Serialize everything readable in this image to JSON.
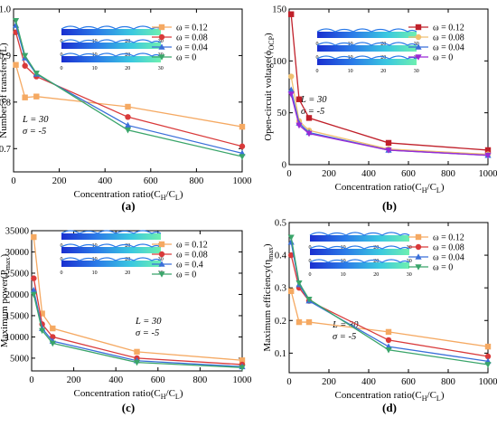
{
  "chart_data": [
    {
      "panel": "(a)",
      "type": "line",
      "ylabel": "Number of transfers (L)",
      "xlabel": "Concentration ratio(C",
      "xlabel_sub1": "H",
      "xlabel_mid": "/C",
      "xlabel_sub2": "L",
      "xlabel_end": ")",
      "xlim": [
        0,
        1000
      ],
      "ylim": [
        0.65,
        1.0
      ],
      "xticks": [
        "0",
        "200",
        "400",
        "600",
        "800",
        "1000"
      ],
      "yticks": [
        "0.7",
        "0.8",
        "0.9",
        "1.0"
      ],
      "ytick_values": [
        0.7,
        0.8,
        0.9,
        1.0
      ],
      "param_lines": [
        "L = 30",
        "σ = -5"
      ],
      "colorbar_ticks": [
        "0",
        "10",
        "20",
        "30"
      ],
      "x": [
        10,
        50,
        100,
        500,
        1000
      ],
      "series": [
        {
          "name": "ω = 0.12",
          "color": "#f5a962",
          "marker": "square",
          "values": [
            0.88,
            0.81,
            0.812,
            0.79,
            0.747
          ]
        },
        {
          "name": "ω = 0.08",
          "color": "#d93a3a",
          "marker": "circle",
          "values": [
            0.95,
            0.878,
            0.855,
            0.768,
            0.705
          ]
        },
        {
          "name": "ω = 0.04",
          "color": "#3a6fd9",
          "marker": "triangle-up",
          "values": [
            0.965,
            0.895,
            0.86,
            0.75,
            0.69
          ]
        },
        {
          "name": "ω = 0",
          "color": "#3aa56a",
          "marker": "triangle-down",
          "values": [
            0.975,
            0.9,
            0.862,
            0.74,
            0.683
          ]
        }
      ]
    },
    {
      "panel": "(b)",
      "type": "line",
      "ylabel": "Open-circuit voltage(ϕ",
      "ylabel_sub": "OCP",
      "ylabel_end": ")",
      "xlabel": "Concentration ratio(C",
      "xlabel_sub1": "H",
      "xlabel_mid": "/C",
      "xlabel_sub2": "L",
      "xlabel_end": ")",
      "xlim": [
        0,
        1000
      ],
      "ylim": [
        0,
        150
      ],
      "xticks": [
        "0",
        "200",
        "400",
        "600",
        "800",
        "1000"
      ],
      "yticks": [
        "0",
        "50",
        "100",
        "150"
      ],
      "ytick_values": [
        0,
        50,
        100,
        150
      ],
      "param_lines": [
        "L = 30",
        "σ = -5"
      ],
      "colorbar_ticks": [
        "0",
        "10",
        "20",
        "30"
      ],
      "x": [
        10,
        50,
        100,
        500,
        1000
      ],
      "series": [
        {
          "name": "ω = 0.12",
          "color": "#c0202a",
          "marker": "square",
          "values": [
            145,
            63,
            45,
            21,
            14
          ]
        },
        {
          "name": "ω = 0.08",
          "color": "#f0c070",
          "marker": "circle",
          "values": [
            85,
            42,
            33,
            15,
            10
          ]
        },
        {
          "name": "ω = 0.04",
          "color": "#3a6fd9",
          "marker": "triangle-up",
          "values": [
            72,
            40,
            31,
            14,
            9
          ]
        },
        {
          "name": "ω = 0",
          "color": "#9a2ad6",
          "marker": "triangle-down",
          "values": [
            68,
            38,
            30,
            14,
            9
          ]
        }
      ]
    },
    {
      "panel": "(c)",
      "type": "line",
      "ylabel": "Maximum power(P",
      "ylabel_sub": "max",
      "ylabel_end": ")",
      "xlabel": "Concentration ratio(C",
      "xlabel_sub1": "H",
      "xlabel_mid": "/C",
      "xlabel_sub2": "L",
      "xlabel_end": ")",
      "xlim": [
        0,
        1000
      ],
      "ylim": [
        2000,
        35000
      ],
      "xticks": [
        "0",
        "200",
        "400",
        "600",
        "800",
        "1000"
      ],
      "yticks": [
        "5000",
        "10000",
        "15000",
        "20000",
        "25000",
        "30000",
        "35000"
      ],
      "ytick_values": [
        5000,
        10000,
        15000,
        20000,
        25000,
        30000,
        35000
      ],
      "param_lines": [
        "L = 30",
        "σ = -5"
      ],
      "colorbar_ticks": [
        "0",
        "10",
        "20",
        "30"
      ],
      "x": [
        10,
        50,
        100,
        500,
        1000
      ],
      "series": [
        {
          "name": "ω = 0.12",
          "color": "#f5a962",
          "marker": "square",
          "values": [
            33500,
            15500,
            12000,
            6500,
            4500
          ]
        },
        {
          "name": "ω = 0.08",
          "color": "#d93a3a",
          "marker": "circle",
          "values": [
            23800,
            13000,
            10000,
            5000,
            3500
          ]
        },
        {
          "name": "ω = 0.4",
          "color": "#3a6fd9",
          "marker": "triangle-up",
          "values": [
            21000,
            12000,
            9000,
            4400,
            3000
          ]
        },
        {
          "name": "ω = 0",
          "color": "#3aa56a",
          "marker": "triangle-down",
          "values": [
            20000,
            11500,
            8500,
            4000,
            2800
          ]
        }
      ]
    },
    {
      "panel": "(d)",
      "type": "line",
      "ylabel": "Maximum efficiency(η",
      "ylabel_sub": "max",
      "ylabel_end": ")",
      "xlabel": "Concentration ratio(C",
      "xlabel_sub1": "H",
      "xlabel_mid": "/C",
      "xlabel_sub2": "L",
      "xlabel_end": ")",
      "xlim": [
        0,
        1000
      ],
      "ylim": [
        0.04,
        0.5
      ],
      "xticks": [
        "0",
        "200",
        "400",
        "600",
        "800",
        "1000"
      ],
      "yticks": [
        "0.1",
        "0.2",
        "0.3",
        "0.4",
        "0.5"
      ],
      "ytick_values": [
        0.1,
        0.2,
        0.3,
        0.4,
        0.5
      ],
      "param_lines": [
        "L = 30",
        "σ = -5"
      ],
      "colorbar_ticks": [
        "0",
        "10",
        "20",
        "30"
      ],
      "x": [
        10,
        50,
        100,
        500,
        1000
      ],
      "series": [
        {
          "name": "ω = 0.12",
          "color": "#f5a962",
          "marker": "square",
          "values": [
            0.29,
            0.195,
            0.195,
            0.165,
            0.12
          ]
        },
        {
          "name": "ω = 0.08",
          "color": "#d93a3a",
          "marker": "circle",
          "values": [
            0.4,
            0.3,
            0.26,
            0.14,
            0.09
          ]
        },
        {
          "name": "ω = 0.04",
          "color": "#3a6fd9",
          "marker": "triangle-up",
          "values": [
            0.44,
            0.31,
            0.26,
            0.12,
            0.075
          ]
        },
        {
          "name": "ω = 0",
          "color": "#3aa56a",
          "marker": "triangle-down",
          "values": [
            0.455,
            0.315,
            0.265,
            0.11,
            0.065
          ]
        }
      ]
    }
  ]
}
